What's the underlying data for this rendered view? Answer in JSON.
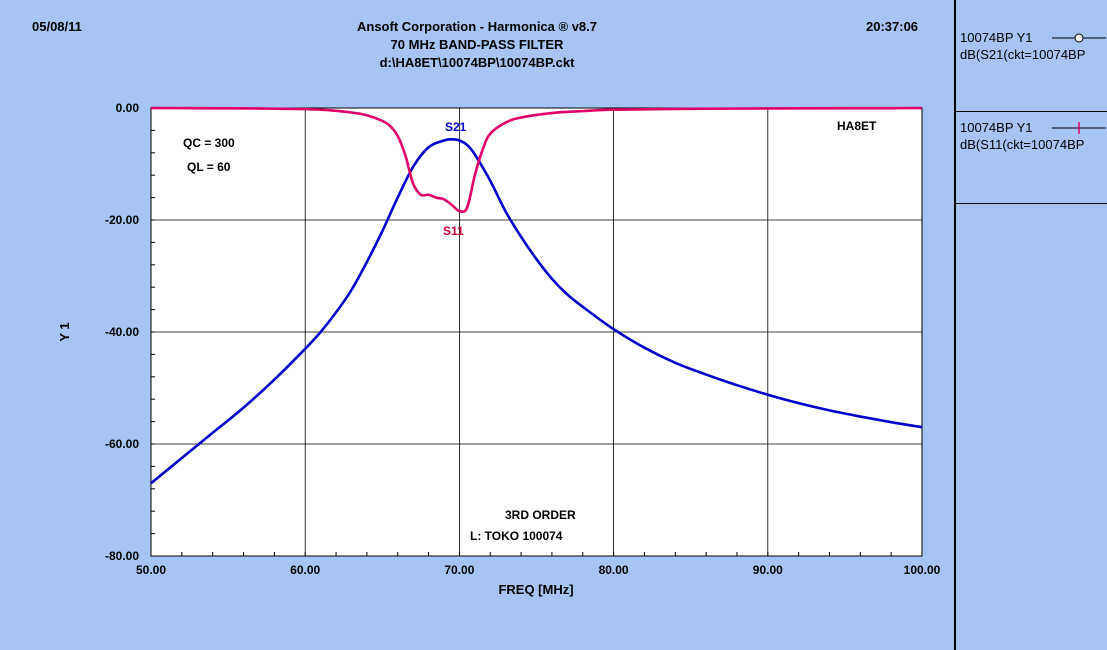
{
  "header": {
    "date": "05/08/11",
    "time": "20:37:06",
    "title1": "Ansoft Corporation - Harmonica ® v8.7",
    "title2": "70 MHz BAND-PASS FILTER",
    "title3": "d:\\HA8ET\\10074BP\\10074BP.ckt"
  },
  "annotations": {
    "qc": "QC = 300",
    "ql": "QL = 60",
    "author": "HA8ET",
    "order": "3RD ORDER",
    "inductor": "L: TOKO 100074",
    "s21_label": "S21",
    "s11_label": "S11"
  },
  "legend": [
    {
      "line1": "10074BP Y1",
      "line2": "dB(S21(ckt=10074BP",
      "color": "#0000cc",
      "marker": "circle"
    },
    {
      "line1": "10074BP Y1",
      "line2": "dB(S11(ckt=10074BP",
      "color": "#e0006a",
      "marker": "plus"
    }
  ],
  "chart_data": {
    "type": "line",
    "xlabel": "FREQ [MHz]",
    "ylabel": "Y 1",
    "xlim": [
      50,
      100
    ],
    "ylim": [
      -80,
      0
    ],
    "xticks": [
      "50.00",
      "60.00",
      "70.00",
      "80.00",
      "90.00",
      "100.00"
    ],
    "yticks": [
      "0.00",
      "-20.00",
      "-40.00",
      "-60.00",
      "-80.00"
    ],
    "grid": true,
    "series": [
      {
        "name": "S21",
        "color": "#0000cc",
        "x": [
          50,
          52,
          54,
          56,
          58,
          60,
          61,
          62,
          63,
          64,
          65,
          66,
          67,
          68,
          69,
          69.5,
          70,
          70.5,
          71,
          72,
          73,
          74,
          75,
          76,
          77,
          78,
          80,
          82,
          84,
          86,
          88,
          90,
          92,
          94,
          96,
          98,
          100
        ],
        "y": [
          -67,
          -62.5,
          -58,
          -53.5,
          -48.5,
          -43,
          -40,
          -36.5,
          -32.5,
          -27.5,
          -22,
          -16,
          -10.5,
          -7,
          -5.8,
          -5.6,
          -5.8,
          -6.6,
          -8.3,
          -13,
          -18.5,
          -23,
          -27,
          -30.5,
          -33.3,
          -35.5,
          -39.5,
          -42.8,
          -45.5,
          -47.6,
          -49.5,
          -51.2,
          -52.7,
          -54,
          -55.1,
          -56.1,
          -57
        ]
      },
      {
        "name": "S11",
        "color": "#e0006a",
        "x": [
          50,
          55,
          60,
          62,
          63,
          64,
          65,
          65.5,
          66,
          66.5,
          67,
          67.5,
          68,
          68.5,
          69,
          69.5,
          70,
          70.5,
          71,
          71.5,
          72,
          73,
          74,
          76,
          78,
          80,
          85,
          90,
          95,
          100
        ],
        "y": [
          -0.02,
          -0.05,
          -0.2,
          -0.5,
          -0.8,
          -1.3,
          -2.3,
          -3.2,
          -5,
          -8.5,
          -13.5,
          -15.5,
          -15.5,
          -16,
          -16.3,
          -17.3,
          -18.4,
          -17.8,
          -12,
          -7.5,
          -4.6,
          -2.6,
          -1.7,
          -0.9,
          -0.55,
          -0.3,
          -0.15,
          -0.08,
          -0.04,
          -0.02
        ]
      }
    ]
  }
}
